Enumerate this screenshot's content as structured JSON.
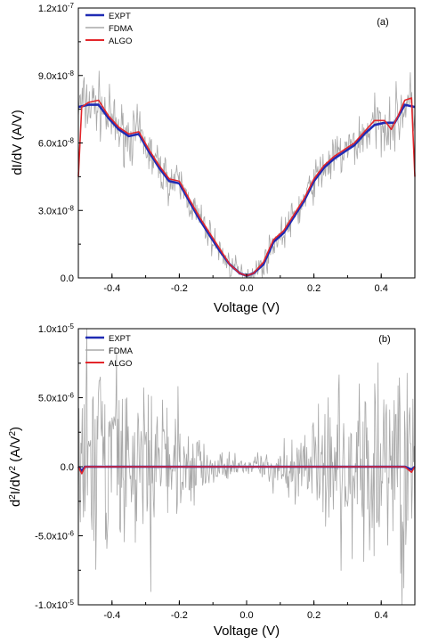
{
  "chart_data": [
    {
      "type": "line",
      "panel_label": "(a)",
      "xlabel": "Voltage (V)",
      "ylabel": "dI/dV (A/V)",
      "xlim": [
        -0.5,
        0.5
      ],
      "ylim": [
        0,
        1.2e-07
      ],
      "x_ticks": [
        -0.4,
        -0.2,
        0.0,
        0.2,
        0.4
      ],
      "x_tick_labels": [
        "-0.4",
        "-0.2",
        "0.0",
        "0.2",
        "0.4"
      ],
      "y_ticks": [
        0,
        3e-08,
        6e-08,
        9e-08,
        1.2e-07
      ],
      "y_tick_labels": [
        "0.0",
        "3.0x10-8",
        "6.0x10-8",
        "9.0x10-8",
        "1.2x10-7"
      ],
      "legend_position": "top-left",
      "series": [
        {
          "name": "EXPT",
          "color": "#1f2bb4",
          "x": [
            -0.5,
            -0.47,
            -0.44,
            -0.41,
            -0.38,
            -0.35,
            -0.32,
            -0.29,
            -0.26,
            -0.23,
            -0.2,
            -0.17,
            -0.14,
            -0.11,
            -0.08,
            -0.05,
            -0.02,
            0,
            0.02,
            0.05,
            0.08,
            0.11,
            0.14,
            0.17,
            0.2,
            0.23,
            0.26,
            0.29,
            0.32,
            0.35,
            0.38,
            0.41,
            0.44,
            0.47,
            0.5
          ],
          "y": [
            7.6e-08,
            7.7e-08,
            7.7e-08,
            7.1e-08,
            6.6e-08,
            6.3e-08,
            6.4e-08,
            5.6e-08,
            4.9e-08,
            4.3e-08,
            4.2e-08,
            3.4e-08,
            2.6e-08,
            1.9e-08,
            1.2e-08,
            6e-09,
            2e-09,
            1e-09,
            2e-09,
            6e-09,
            1.6e-08,
            2e-08,
            2.7e-08,
            3.4e-08,
            4.3e-08,
            4.9e-08,
            5.3e-08,
            5.6e-08,
            5.9e-08,
            6.4e-08,
            6.8e-08,
            6.9e-08,
            6.9e-08,
            7.7e-08,
            7.6e-08
          ]
        },
        {
          "name": "FDMA",
          "color": "#a8a8a8",
          "x": [
            -0.5,
            -0.47,
            -0.44,
            -0.41,
            -0.38,
            -0.35,
            -0.32,
            -0.29,
            -0.26,
            -0.23,
            -0.2,
            -0.17,
            -0.14,
            -0.11,
            -0.08,
            -0.05,
            -0.02,
            0,
            0.02,
            0.05,
            0.08,
            0.11,
            0.14,
            0.17,
            0.2,
            0.23,
            0.26,
            0.29,
            0.32,
            0.35,
            0.38,
            0.41,
            0.44,
            0.47,
            0.5
          ],
          "y": [
            7.6e-08,
            7.7e-08,
            7.7e-08,
            7.1e-08,
            6.6e-08,
            6.3e-08,
            6.4e-08,
            5.6e-08,
            4.9e-08,
            4.3e-08,
            4.2e-08,
            3.4e-08,
            2.6e-08,
            1.9e-08,
            1.2e-08,
            6e-09,
            2e-09,
            1e-09,
            2e-09,
            6e-09,
            1.6e-08,
            2e-08,
            2.7e-08,
            3.4e-08,
            4.3e-08,
            4.9e-08,
            5.3e-08,
            5.6e-08,
            5.9e-08,
            6.4e-08,
            6.8e-08,
            6.9e-08,
            6.9e-08,
            7.7e-08,
            7.6e-08
          ],
          "noise_amplitude": 1.2e-08
        },
        {
          "name": "ALGO",
          "color": "#e3262b",
          "x": [
            -0.5,
            -0.49,
            -0.47,
            -0.44,
            -0.41,
            -0.38,
            -0.35,
            -0.32,
            -0.29,
            -0.26,
            -0.23,
            -0.2,
            -0.17,
            -0.14,
            -0.11,
            -0.08,
            -0.05,
            -0.02,
            0,
            0.02,
            0.05,
            0.08,
            0.11,
            0.14,
            0.17,
            0.2,
            0.23,
            0.26,
            0.29,
            0.32,
            0.35,
            0.38,
            0.41,
            0.43,
            0.45,
            0.47,
            0.49,
            0.5
          ],
          "y": [
            4.5e-08,
            7.6e-08,
            7.8e-08,
            7.9e-08,
            7.2e-08,
            6.7e-08,
            6.4e-08,
            6.5e-08,
            5.7e-08,
            5e-08,
            4.4e-08,
            4.3e-08,
            3.5e-08,
            2.7e-08,
            2e-08,
            1.3e-08,
            6e-09,
            2e-09,
            1e-09,
            2e-09,
            7e-09,
            1.7e-08,
            2.1e-08,
            2.8e-08,
            3.5e-08,
            4.4e-08,
            5e-08,
            5.4e-08,
            5.7e-08,
            6e-08,
            6.5e-08,
            7e-08,
            7e-08,
            6.6e-08,
            7.2e-08,
            7.9e-08,
            8e-08,
            4.5e-08
          ]
        }
      ]
    },
    {
      "type": "line",
      "panel_label": "(b)",
      "xlabel": "Voltage (V)",
      "ylabel": "d2I/dV2 (A/V2)",
      "xlim": [
        -0.5,
        0.5
      ],
      "ylim": [
        -1e-05,
        1e-05
      ],
      "x_ticks": [
        -0.4,
        -0.2,
        0.0,
        0.2,
        0.4
      ],
      "x_tick_labels": [
        "-0.4",
        "-0.2",
        "0.0",
        "0.2",
        "0.4"
      ],
      "y_ticks": [
        -1e-05,
        -5e-06,
        0,
        5e-06,
        1e-05
      ],
      "y_tick_labels": [
        "-1.0x10-5",
        "-5.0x10-6",
        "0.0",
        "5.0x10-6",
        "1.0x10-5"
      ],
      "legend_position": "top-left",
      "series": [
        {
          "name": "EXPT",
          "color": "#1f2bb4",
          "x": [
            -0.5,
            -0.49,
            -0.48,
            -0.3,
            0,
            0.3,
            0.47,
            0.49,
            0.5
          ],
          "y": [
            0,
            -3e-07,
            0,
            0,
            0,
            0,
            0,
            -2e-07,
            0
          ]
        },
        {
          "name": "FDMA",
          "color": "#a8a8a8",
          "x": [
            -0.5,
            -0.4,
            -0.3,
            -0.2,
            -0.1,
            0,
            0.1,
            0.2,
            0.3,
            0.4,
            0.5
          ],
          "y": [
            0,
            0,
            0,
            0,
            0,
            0,
            0,
            0,
            0,
            0,
            0
          ],
          "envelope": [
            1e-05,
            1e-05,
            8e-06,
            5e-06,
            2e-06,
            6e-07,
            2e-06,
            5e-06,
            8e-06,
            1e-05,
            1e-05
          ]
        },
        {
          "name": "ALGO",
          "color": "#e3262b",
          "x": [
            -0.5,
            -0.49,
            -0.48,
            -0.3,
            0,
            0.3,
            0.47,
            0.49,
            0.5
          ],
          "y": [
            0,
            -5e-07,
            0,
            0,
            0,
            0,
            0,
            -4e-07,
            0
          ]
        }
      ]
    }
  ]
}
